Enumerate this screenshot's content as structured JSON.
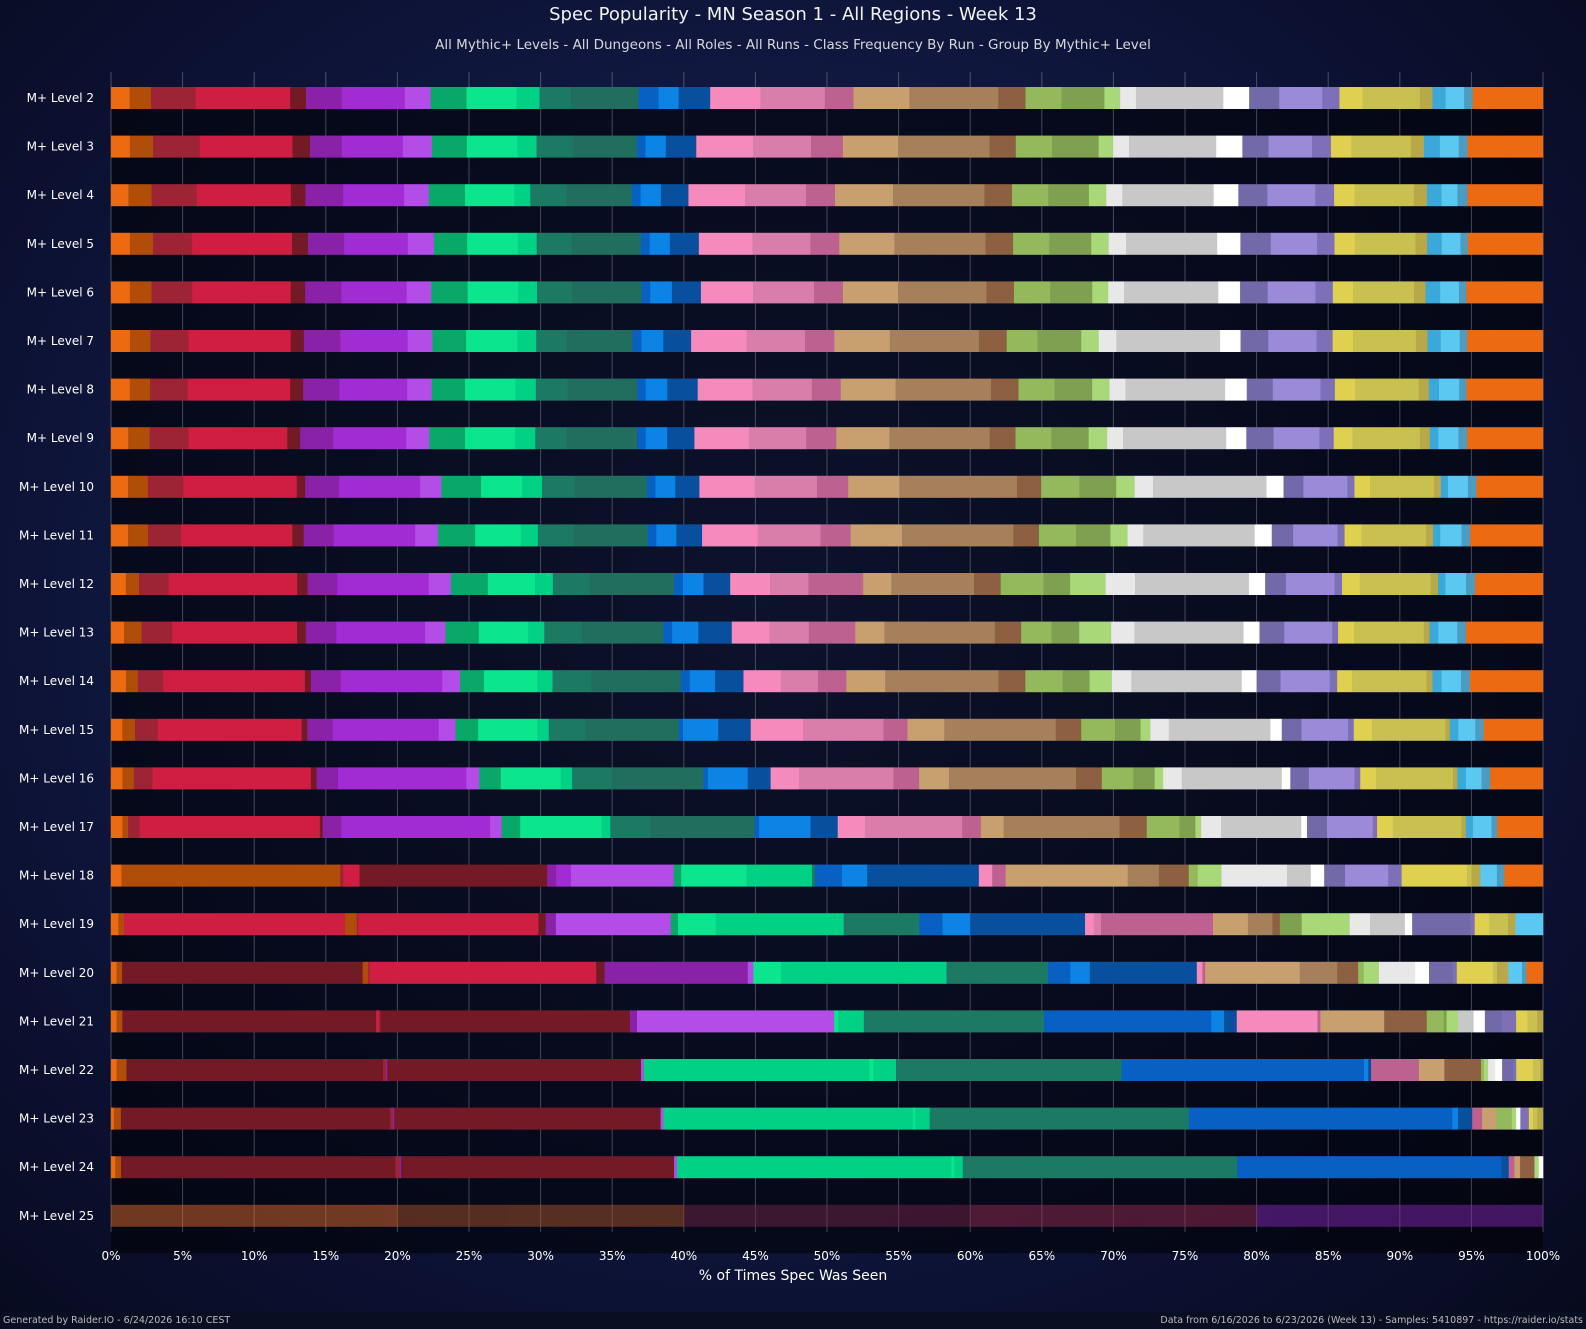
{
  "chart_data": {
    "type": "bar",
    "orientation": "horizontal",
    "stacked": true,
    "title": "Spec Popularity - MN Season 1 - All Regions - Week 13",
    "subtitle": "All Mythic+ Levels - All Dungeons - All Roles - All Runs - Class Frequency By Run - Group By Mythic+ Level",
    "xlabel": "% of Times Spec Was Seen",
    "ylabel": "",
    "xlim": [
      0,
      100
    ],
    "xticks": [
      "0%",
      "5%",
      "10%",
      "15%",
      "20%",
      "25%",
      "30%",
      "35%",
      "40%",
      "45%",
      "50%",
      "55%",
      "60%",
      "65%",
      "70%",
      "75%",
      "80%",
      "85%",
      "90%",
      "95%",
      "100%"
    ],
    "grid": true,
    "legend": "none",
    "footer_left": "Generated by Raider.IO - 6/24/2026 16:10 CEST",
    "footer_right": "Data from 6/16/2026 to 6/23/2026 (Week 13) - Samples: 5410897 - https://raider.io/stats",
    "colors": [
      "#ec6a12",
      "#b04d08",
      "#9c2434",
      "#cf1e42",
      "#741a26",
      "#8a22a8",
      "#a22cd4",
      "#b44ce8",
      "#0aa868",
      "#0ae58e",
      "#00d184",
      "#1d7a62",
      "#216e5e",
      "#0760c2",
      "#0b84e6",
      "#084f9e",
      "#f58bbd",
      "#d97daa",
      "#bd6191",
      "#c8a070",
      "#a5805a",
      "#8c6040",
      "#94b85c",
      "#7fa050",
      "#a8d878",
      "#e8e8e8",
      "#c8c8c8",
      "#ffffff",
      "#726aa8",
      "#9a8ad8",
      "#7e70b8",
      "#e0d050",
      "#c8c050",
      "#b8a848",
      "#3aa8d8",
      "#5ac8f0",
      "#4c9cc2"
    ],
    "categories": [
      "M+ Level 2",
      "M+ Level 3",
      "M+ Level 4",
      "M+ Level 5",
      "M+ Level 6",
      "M+ Level 7",
      "M+ Level 8",
      "M+ Level 9",
      "M+ Level 10",
      "M+ Level 11",
      "M+ Level 12",
      "M+ Level 13",
      "M+ Level 14",
      "M+ Level 15",
      "M+ Level 16",
      "M+ Level 17",
      "M+ Level 18",
      "M+ Level 19",
      "M+ Level 20",
      "M+ Level 21",
      "M+ Level 22",
      "M+ Level 23",
      "M+ Level 24",
      "M+ Level 25"
    ],
    "rows": [
      [
        1.3,
        1.5,
        3.1,
        6.6,
        1.1,
        2.5,
        4.4,
        1.8,
        2.5,
        3.5,
        1.6,
        2.2,
        4.7,
        1.4,
        1.4,
        2.2,
        3.5,
        4.5,
        2.0,
        3.9,
        6.2,
        1.9,
        2.5,
        3.0,
        1.1,
        1.1,
        6.1,
        1.8,
        2.1,
        3.0,
        1.2,
        1.6,
        4.0,
        0.9,
        0.9,
        1.3,
        0.6,
        4.9
      ],
      [
        1.3,
        1.6,
        3.2,
        6.4,
        1.2,
        2.2,
        4.2,
        2.0,
        2.4,
        3.5,
        1.3,
        2.5,
        4.4,
        0.6,
        1.4,
        2.1,
        3.9,
        4.0,
        2.2,
        3.8,
        6.3,
        1.8,
        2.5,
        3.2,
        1.0,
        1.1,
        6.0,
        1.8,
        1.8,
        3.0,
        1.3,
        1.4,
        4.1,
        0.9,
        1.1,
        1.3,
        0.6,
        5.2
      ],
      [
        1.2,
        1.6,
        3.1,
        6.5,
        1.0,
        2.6,
        4.2,
        1.7,
        2.5,
        3.4,
        1.1,
        2.5,
        4.5,
        0.6,
        1.4,
        1.9,
        3.9,
        4.2,
        2.0,
        4.0,
        6.3,
        1.9,
        2.5,
        2.8,
        1.2,
        1.1,
        6.3,
        1.7,
        2.0,
        3.3,
        1.3,
        1.4,
        4.1,
        0.9,
        1.0,
        1.1,
        0.7,
        5.2
      ],
      [
        1.3,
        1.6,
        2.7,
        6.9,
        1.1,
        2.5,
        4.4,
        1.8,
        2.3,
        3.5,
        1.3,
        2.4,
        4.8,
        0.6,
        1.4,
        2.0,
        3.7,
        4.0,
        2.0,
        3.8,
        6.3,
        1.9,
        2.5,
        2.9,
        1.2,
        1.2,
        6.3,
        1.6,
        2.1,
        3.2,
        1.2,
        1.4,
        4.2,
        0.8,
        1.0,
        1.3,
        0.5,
        5.2
      ],
      [
        1.3,
        1.5,
        2.8,
        6.8,
        1.0,
        2.5,
        4.5,
        1.7,
        2.5,
        3.5,
        1.3,
        2.4,
        4.8,
        0.6,
        1.5,
        2.0,
        3.6,
        4.2,
        2.0,
        3.8,
        6.1,
        1.9,
        2.5,
        2.9,
        1.1,
        1.1,
        6.5,
        1.5,
        1.9,
        3.3,
        1.2,
        1.4,
        4.2,
        0.8,
        1.0,
        1.3,
        0.5,
        5.3
      ],
      [
        1.3,
        1.4,
        2.6,
        7.0,
        0.9,
        2.5,
        4.6,
        1.7,
        2.3,
        3.5,
        1.3,
        2.1,
        4.5,
        0.6,
        1.5,
        1.9,
        3.8,
        4.0,
        2.0,
        3.8,
        6.1,
        1.9,
        2.1,
        3.0,
        1.2,
        1.2,
        7.1,
        1.4,
        1.9,
        3.3,
        1.1,
        1.4,
        4.3,
        0.8,
        0.9,
        1.3,
        0.5,
        5.2
      ],
      [
        1.3,
        1.4,
        2.6,
        7.1,
        0.9,
        2.5,
        4.7,
        1.7,
        2.3,
        3.5,
        1.4,
        2.2,
        4.8,
        0.6,
        1.5,
        2.1,
        3.8,
        4.1,
        2.0,
        3.8,
        6.6,
        1.9,
        2.5,
        2.6,
        1.2,
        1.1,
        6.9,
        1.5,
        1.8,
        3.3,
        1.0,
        1.4,
        4.4,
        0.7,
        0.7,
        1.4,
        0.5,
        5.3
      ],
      [
        1.2,
        1.5,
        2.7,
        6.9,
        0.9,
        2.3,
        5.1,
        1.6,
        2.5,
        3.5,
        1.4,
        2.2,
        4.9,
        0.6,
        1.5,
        1.9,
        3.8,
        4.0,
        2.1,
        3.7,
        7.0,
        1.8,
        2.5,
        2.6,
        1.3,
        1.1,
        7.2,
        1.4,
        1.9,
        3.2,
        1.0,
        1.3,
        4.7,
        0.7,
        0.6,
        1.4,
        0.6,
        5.3
      ],
      [
        1.2,
        1.4,
        2.5,
        8.0,
        0.6,
        2.4,
        5.7,
        1.5,
        2.8,
        2.9,
        1.4,
        2.3,
        5.1,
        0.6,
        1.4,
        1.7,
        3.9,
        4.4,
        2.2,
        3.6,
        8.3,
        1.7,
        2.7,
        2.6,
        1.3,
        1.3,
        8.0,
        1.2,
        1.4,
        3.1,
        0.5,
        1.1,
        4.5,
        0.5,
        0.5,
        1.4,
        0.6,
        4.7
      ],
      [
        1.2,
        1.4,
        2.3,
        7.8,
        0.8,
        2.1,
        5.7,
        1.6,
        2.6,
        3.2,
        1.2,
        2.5,
        5.2,
        0.6,
        1.4,
        1.8,
        3.9,
        4.4,
        2.1,
        3.6,
        7.8,
        1.8,
        2.6,
        2.4,
        1.2,
        1.1,
        7.8,
        1.2,
        1.5,
        3.1,
        0.5,
        1.2,
        4.5,
        0.5,
        0.5,
        1.5,
        0.6,
        5.1
      ],
      [
        1.0,
        0.9,
        2.0,
        8.7,
        0.7,
        2.0,
        6.2,
        1.5,
        2.5,
        3.2,
        1.2,
        2.5,
        5.7,
        0.6,
        1.4,
        1.8,
        2.7,
        2.6,
        3.7,
        1.9,
        5.6,
        1.8,
        2.9,
        1.8,
        2.4,
        2.0,
        7.7,
        1.1,
        1.4,
        3.3,
        0.5,
        1.2,
        4.8,
        0.5,
        0.5,
        1.4,
        0.6,
        4.6
      ],
      [
        0.9,
        1.2,
        2.1,
        8.6,
        0.6,
        2.1,
        6.1,
        1.4,
        2.3,
        3.4,
        1.1,
        2.6,
        5.6,
        0.6,
        1.8,
        2.3,
        2.6,
        2.7,
        3.2,
        2.0,
        7.6,
        1.8,
        2.1,
        1.9,
        2.2,
        1.6,
        7.5,
        1.1,
        1.7,
        3.3,
        0.4,
        1.1,
        4.8,
        0.4,
        0.6,
        1.3,
        0.6,
        5.3
      ],
      [
        1.0,
        0.8,
        1.7,
        9.5,
        0.4,
        2.0,
        6.8,
        1.2,
        1.6,
        3.6,
        1.0,
        2.6,
        6.0,
        0.6,
        1.7,
        1.9,
        2.5,
        2.5,
        1.9,
        2.6,
        7.6,
        1.8,
        2.5,
        1.8,
        1.5,
        1.3,
        7.4,
        1.0,
        1.6,
        3.3,
        0.5,
        1.0,
        5.0,
        0.4,
        0.6,
        1.3,
        0.6,
        4.9
      ],
      [
        0.8,
        0.9,
        1.6,
        10.2,
        0.4,
        1.8,
        7.5,
        1.2,
        1.6,
        4.2,
        0.8,
        2.6,
        6.6,
        0.3,
        2.5,
        2.3,
        3.7,
        5.7,
        1.7,
        2.6,
        7.9,
        1.8,
        2.4,
        1.8,
        0.7,
        1.3,
        7.2,
        0.8,
        1.4,
        3.3,
        0.4,
        1.3,
        5.2,
        0.3,
        0.6,
        1.2,
        0.6,
        4.2
      ],
      [
        0.8,
        0.8,
        1.3,
        11.1,
        0.4,
        1.5,
        9.0,
        0.9,
        1.5,
        4.2,
        0.8,
        2.8,
        6.4,
        0.3,
        2.8,
        1.6,
        2.0,
        6.6,
        1.8,
        2.1,
        8.9,
        1.8,
        2.2,
        1.5,
        0.6,
        1.3,
        7.0,
        0.6,
        1.3,
        3.2,
        0.4,
        1.1,
        5.4,
        0.3,
        0.6,
        1.1,
        0.6,
        3.7
      ],
      [
        0.8,
        0.4,
        0.8,
        12.6,
        0.2,
        1.3,
        10.4,
        0.8,
        1.3,
        5.7,
        0.6,
        2.8,
        7.3,
        0.3,
        3.6,
        1.9,
        1.9,
        6.8,
        1.3,
        1.6,
        8.1,
        1.9,
        2.3,
        1.1,
        0.4,
        1.4,
        5.6,
        0.4,
        1.4,
        3.2,
        0.3,
        1.1,
        4.8,
        0.3,
        0.5,
        1.3,
        0.4,
        3.2
      ],
      [
        0.7,
        0.3,
        0.2,
        14.2,
        0.2,
        1.1,
        12.6,
        0.6,
        1.0,
        6.9,
        0.5,
        4.4,
        4.4,
        0.2,
        1.8,
        1.7,
        7.5,
        0.9,
        0.9,
        8.2,
        2.1,
        2.0,
        0.6,
        1.6,
        4.4,
        1.6,
        0.9,
        1.4,
        2.9,
        0.9,
        4.4,
        0.3,
        0.6,
        1.1,
        0.5,
        2.6
      ],
      [
        0.5,
        0.4,
        15.2,
        0.8,
        0.1,
        12.4,
        0.5,
        0.7,
        7.9,
        0.5,
        2.6,
        8.8,
        5.2,
        1.6,
        1.9,
        7.9,
        0.6,
        0.5,
        7.7,
        2.4,
        1.7,
        0.5,
        1.5,
        3.3,
        1.4,
        2.4,
        0.5,
        4.0,
        0.3,
        1.0,
        1.3,
        0.5,
        1.9
      ],
      [
        0.4,
        0.4,
        17.3,
        0.4,
        0.1,
        16.3,
        0.6,
        10.3,
        0.4,
        2.0,
        11.9,
        7.3,
        1.6,
        1.4,
        7.7,
        0.4,
        0.2,
        6.8,
        2.7,
        1.5,
        0.4,
        1.1,
        2.6,
        1.0,
        1.7,
        0.3,
        2.6,
        0.3,
        0.8,
        1.0,
        0.3,
        1.2
      ],
      [
        0.4,
        0.4,
        17.9,
        0.2,
        0.1,
        17.6,
        0.5,
        13.9,
        0.3,
        1.8,
        12.7,
        11.8,
        0.9,
        0.9,
        5.7,
        0.2,
        4.5,
        3.0,
        1.2,
        0.2,
        0.8,
        1.1,
        0.8,
        1.2,
        1.0,
        0.8,
        0.7,
        0.4
      ],
      [
        0.4,
        0.7,
        18.2,
        0.2,
        0.1,
        18.0,
        0.2,
        16.0,
        0.3,
        1.6,
        16.0,
        17.2,
        0.3,
        0.2,
        3.4,
        1.8,
        2.6,
        0.2,
        0.3,
        0.5,
        0.5,
        0.8,
        0.2,
        1.2,
        0.5,
        0.2
      ],
      [
        0.2,
        0.5,
        19.0,
        0.2,
        0.1,
        18.8,
        0.2,
        17.6,
        0.2,
        1.0,
        18.3,
        18.6,
        0.4,
        1.0,
        0.7,
        1.0,
        1.1,
        0.3,
        0.3,
        0.6,
        0.3,
        0.3,
        0.4
      ],
      [
        0.3,
        0.4,
        19.2,
        0.3,
        0.1,
        19.1,
        0.2,
        19.2,
        0.2,
        0.6,
        19.2,
        18.5,
        0.5,
        0.4,
        0.4,
        1.0,
        0.3,
        0.3
      ],
      [
        20.0,
        20.0,
        20.0,
        20.0,
        20.0
      ]
    ],
    "row_colors": [
      null,
      null,
      null,
      null,
      null,
      null,
      null,
      null,
      null,
      null,
      null,
      null,
      null,
      null,
      null,
      null,
      [
        "#ec6a12",
        "#b04d08",
        "#b04d08",
        "#b04d08",
        "#9c2434",
        "#cf1e42",
        "#741a26",
        "#8a22a8",
        "#a22cd4",
        "#b44ce8",
        "#0aa868",
        "#0ae58e",
        "#00d184",
        "#1d7a62",
        "#0760c2",
        "#0b84e6",
        "#084f9e",
        "#f58bbd",
        "#bd6191",
        "#c8a070",
        "#a5805a",
        "#8c6040",
        "#94b85c",
        "#a8d878",
        "#e8e8e8",
        "#c8c8c8",
        "#ffffff",
        "#726aa8",
        "#9a8ad8",
        "#7e70b8",
        "#e0d050",
        "#c8c050",
        "#b8a848",
        "#5ac8f0",
        "#4c9cc2"
      ],
      [
        "#ec6a12",
        "#b04d08",
        "#cf1e42",
        "#b04d08",
        "#9c2434",
        "#cf1e42",
        "#741a26",
        "#8a22a8",
        "#b44ce8",
        "#0aa868",
        "#0ae58e",
        "#00d184",
        "#1d7a62",
        "#0760c2",
        "#0b84e6",
        "#084f9e",
        "#f58bbd",
        "#d97daa",
        "#bd6191",
        "#c8a070",
        "#a5805a",
        "#8c6040",
        "#7fa050",
        "#a8d878",
        "#e8e8e8",
        "#c8c8c8",
        "#ffffff",
        "#726aa8",
        "#7e70b8",
        "#e0d050",
        "#c8c050",
        "#b8a848",
        "#5ac8f0",
        "#4c9cc2"
      ],
      [
        "#ec6a12",
        "#b04d08",
        "#741a26",
        "#b04d08",
        "#9c2434",
        "#cf1e42",
        "#741a26",
        "#8a22a8",
        "#b44ce8",
        "#0ae58e",
        "#00d184",
        "#1d7a62",
        "#0760c2",
        "#0b84e6",
        "#084f9e",
        "#f58bbd",
        "#bd6191",
        "#c8a070",
        "#a5805a",
        "#8c6040",
        "#94b85c",
        "#a8d878",
        "#e8e8e8",
        "#ffffff",
        "#726aa8",
        "#7e70b8",
        "#e0d050",
        "#c8c050",
        "#b8a848",
        "#5ac8f0",
        "#4c9cc2"
      ],
      [
        "#ec6a12",
        "#b04d08",
        "#741a26",
        "#cf1e42",
        "#9c2434",
        "#741a26",
        "#8a22a8",
        "#b44ce8",
        "#0ae58e",
        "#00d184",
        "#1d7a62",
        "#0760c2",
        "#0b84e6",
        "#084f9e",
        "#f58bbd",
        "#bd6191",
        "#c8a070",
        "#8c6040",
        "#94b85c",
        "#7fa050",
        "#a8d878",
        "#c8c8c8",
        "#ffffff",
        "#726aa8",
        "#7e70b8",
        "#e0d050",
        "#c8c050",
        "#b8a848",
        "#5ac8f0",
        "#4c9cc2",
        "#4c9cc2",
        "#4c9cc2"
      ],
      [
        "#ec6a12",
        "#b04d08",
        "#741a26",
        "#9c2434",
        "#8a22a8",
        "#741a26",
        "#b44ce8",
        "#00d184",
        "#0ae58e",
        "#00d184",
        "#1d7a62",
        "#0760c2",
        "#0b84e6",
        "#084f9e",
        "#bd6191",
        "#c8a070",
        "#8c6040",
        "#94b85c",
        "#a8d878",
        "#e8e8e8",
        "#ffffff",
        "#726aa8",
        "#7e70b8",
        "#e0d050",
        "#c8c050",
        "#b8a848",
        "#5ac8f0",
        "#4c9cc2"
      ],
      [
        "#ec6a12",
        "#b04d08",
        "#741a26",
        "#9c2434",
        "#8a22a8",
        "#741a26",
        "#b44ce8",
        "#00d184",
        "#0ae58e",
        "#00d184",
        "#1d7a62",
        "#0760c2",
        "#0b84e6",
        "#084f9e",
        "#bd6191",
        "#c8a070",
        "#94b85c",
        "#a8d878",
        "#ffffff",
        "#7e70b8",
        "#e0d050",
        "#c8c050",
        "#b8a848",
        "#5ac8f0",
        "#4c9cc2",
        "#4c9cc2"
      ],
      [
        "#ec6a12",
        "#b04d08",
        "#741a26",
        "#9c2434",
        "#8a22a8",
        "#741a26",
        "#b44ce8",
        "#00d184",
        "#0ae58e",
        "#00d184",
        "#1d7a62",
        "#0760c2",
        "#084f9e",
        "#bd6191",
        "#c8a070",
        "#8c6040",
        "#a8d878",
        "#ffffff",
        "#7e70b8",
        "#e0d050",
        "#c8c050",
        "#5ac8f0",
        "#4c9cc2"
      ],
      [
        "#ec6a12",
        "#b04d08",
        "#741a26",
        "#9c2434",
        "#8a22a8",
        "#741a26",
        "#b44ce8",
        "#00d184",
        "#0ae58e",
        "#00d184",
        "#1d7a62",
        "#0760c2",
        "#084f9e",
        "#bd6191",
        "#c8a070",
        "#a8d878",
        "#e0d050",
        "#4c9cc2"
      ],
      [
        "#b04d08",
        "#741a26",
        "#b44ce8",
        "#00d184",
        "#1d7a62"
      ]
    ]
  }
}
